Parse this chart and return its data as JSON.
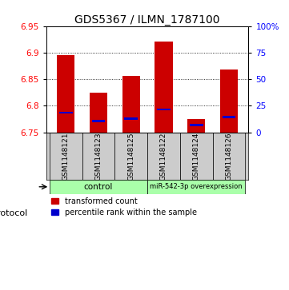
{
  "title": "GDS5367 / ILMN_1787100",
  "samples": [
    "GSM1148121",
    "GSM1148123",
    "GSM1148125",
    "GSM1148122",
    "GSM1148124",
    "GSM1148126"
  ],
  "red_heights": [
    6.895,
    6.825,
    6.856,
    6.921,
    6.775,
    6.868
  ],
  "blue_positions": [
    6.787,
    6.771,
    6.776,
    6.793,
    6.764,
    6.779
  ],
  "ymin": 6.75,
  "ymax": 6.95,
  "yticks_left": [
    6.75,
    6.8,
    6.85,
    6.9,
    6.95
  ],
  "yticks_right": [
    0,
    25,
    50,
    75,
    100
  ],
  "ytick_right_labels": [
    "0",
    "25",
    "50",
    "75",
    "100%"
  ],
  "bar_color": "#cc0000",
  "blue_color": "#0000cc",
  "bar_width": 0.55,
  "control_label": "control",
  "mirna_label": "miR-542-3p overexpression",
  "protocol_label": "protocol",
  "legend_red": "transformed count",
  "legend_blue": "percentile rank within the sample",
  "bg_color": "#ffffff",
  "plot_bg": "#ffffff",
  "gray_box_color": "#cccccc",
  "green_color": "#aaffaa",
  "title_fontsize": 10,
  "tick_fontsize": 7.5,
  "sample_fontsize": 6.5
}
